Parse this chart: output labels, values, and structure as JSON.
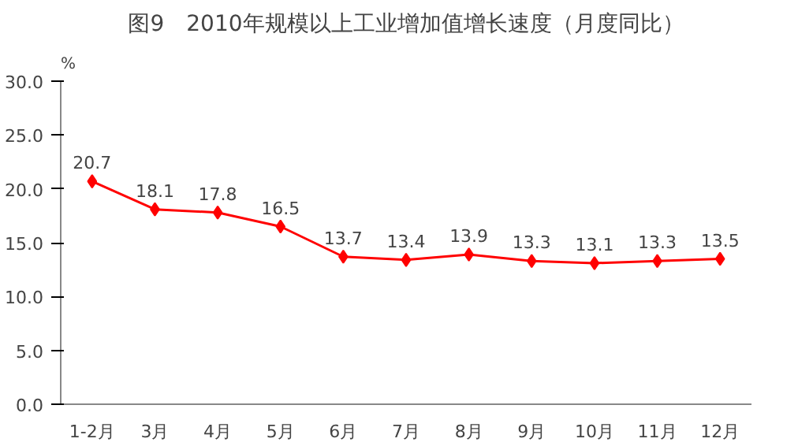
{
  "chart_data": {
    "type": "line",
    "title": "图9　2010年规模以上工业增加值增长速度（月度同比）",
    "ylabel": "%",
    "categories": [
      "1-2月",
      "3月",
      "4月",
      "5月",
      "6月",
      "7月",
      "8月",
      "9月",
      "10月",
      "11月",
      "12月"
    ],
    "series": [
      {
        "color": "#ff0000",
        "values": [
          20.7,
          18.1,
          17.8,
          16.5,
          13.7,
          13.4,
          13.9,
          13.3,
          13.1,
          13.3,
          13.5
        ]
      }
    ],
    "ylim": [
      0,
      30
    ],
    "yticks": [
      {
        "value": 0,
        "label": "0.0"
      },
      {
        "value": 5,
        "label": "5.0"
      },
      {
        "value": 10,
        "label": "10.0"
      },
      {
        "value": 15,
        "label": "15.0"
      },
      {
        "value": 20,
        "label": "20.0"
      },
      {
        "value": 25,
        "label": "25.0"
      },
      {
        "value": 30,
        "label": "30.0"
      }
    ],
    "data_labels": true,
    "marker": "diamond",
    "grid": false
  }
}
